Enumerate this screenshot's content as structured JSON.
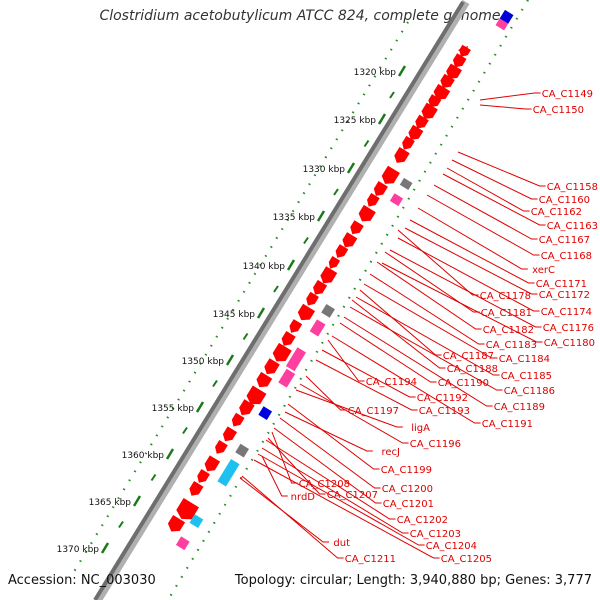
{
  "title": "Clostridium acetobutylicum ATCC 824, complete genome",
  "footer": {
    "accession": "Accession: NC_003030",
    "topology": "Topology: circular; Length: 3,940,880 bp; Genes: 3,777"
  },
  "scale": {
    "tick_labels": [
      "1320 kbp",
      "1325 kbp",
      "1330 kbp",
      "1335 kbp",
      "1340 kbp",
      "1345 kbp",
      "1350 kbp",
      "1355 kbp",
      "1360 kbp",
      "1365 kbp",
      "1370 kbp"
    ]
  },
  "gene_labels": [
    "CA_C1149",
    "CA_C1150",
    "CA_C1158",
    "CA_C1160",
    "CA_C1162",
    "CA_C1163",
    "CA_C1167",
    "CA_C1168",
    "xerC",
    "CA_C1171",
    "CA_C1172",
    "CA_C1174",
    "CA_C1176",
    "CA_C1178",
    "CA_C1180",
    "CA_C1181",
    "CA_C1182",
    "CA_C1183",
    "CA_C1184",
    "CA_C1185",
    "CA_C1186",
    "CA_C1187",
    "CA_C1188",
    "CA_C1189",
    "CA_C1190",
    "CA_C1191",
    "CA_C1192",
    "CA_C1193",
    "CA_C1194",
    "CA_C1196",
    "CA_C1197",
    "CA_C1199",
    "CA_C1200",
    "CA_C1201",
    "CA_C1202",
    "CA_C1203",
    "CA_C1204",
    "CA_C1205",
    "CA_C1207",
    "CA_C1208",
    "CA_C1211",
    "dut",
    "ligA",
    "nrdD",
    "recJ"
  ],
  "colors": {
    "gene_forward": "#ff0000",
    "label": "#e00000",
    "backbone": "#808080",
    "gc_dots": "#228b22",
    "pink_feature": "#ff3fa0",
    "cyan_feature": "#1ec0f0",
    "blue_feature": "#0000dd",
    "gray_feature": "#777777"
  }
}
